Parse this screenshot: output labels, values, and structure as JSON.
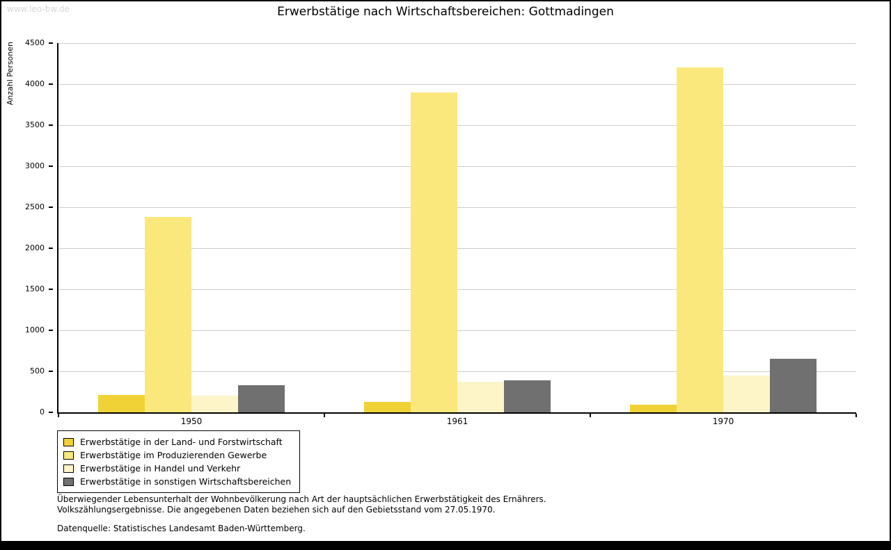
{
  "watermark": "www.leo-bw.de",
  "chart_data": {
    "type": "bar",
    "title": "Erwerbstätige nach Wirtschaftsbereichen: Gottmadingen",
    "xlabel": "",
    "ylabel": "Anzahl Personen",
    "ylim": [
      0,
      4500
    ],
    "ytick_step": 500,
    "grid": true,
    "legend_position": "bottom-left",
    "categories": [
      "1950",
      "1961",
      "1970"
    ],
    "series": [
      {
        "name": "Erwerbstätige in der Land- und Forstwirtschaft",
        "color": "#f0d237",
        "values": [
          210,
          130,
          90
        ]
      },
      {
        "name": "Erwerbstätige im Produzierenden Gewerbe",
        "color": "#fae87c",
        "values": [
          2380,
          3900,
          4200
        ]
      },
      {
        "name": "Erwerbstätige in Handel und Verkehr",
        "color": "#fdf5c8",
        "values": [
          200,
          370,
          450
        ]
      },
      {
        "name": "Erwerbstätige in sonstigen Wirtschaftsbereichen",
        "color": "#707070",
        "values": [
          330,
          390,
          650
        ]
      }
    ]
  },
  "footnotes": {
    "line1": "Überwiegender Lebensunterhalt der Wohnbevölkerung nach Art der hauptsächlichen Erwerbstätigkeit des Ernährers.",
    "line2": "Volkszählungsergebnisse. Die angegebenen Daten beziehen sich auf den Gebietsstand vom 27.05.1970.",
    "source": "Datenquelle: Statistisches Landesamt Baden-Württemberg."
  }
}
